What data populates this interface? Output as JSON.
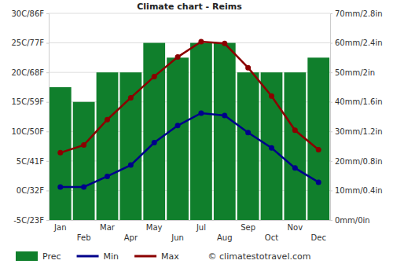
{
  "chart_data": {
    "type": "bar",
    "title": "Climate chart - Reims",
    "categories": [
      "Jan",
      "Feb",
      "Mar",
      "Apr",
      "May",
      "Jun",
      "Jul",
      "Aug",
      "Sep",
      "Oct",
      "Nov",
      "Dec"
    ],
    "series": [
      {
        "name": "Prec",
        "type": "bar",
        "axis": "y2",
        "color": "#107f2c",
        "values": [
          45,
          40,
          50,
          50,
          60,
          55,
          60,
          60,
          50,
          50,
          50,
          55
        ]
      },
      {
        "name": "Min",
        "type": "line",
        "color": "#00008b",
        "marker": "circle",
        "values": [
          0.6,
          0.6,
          2.4,
          4.3,
          8.1,
          11,
          13.1,
          12.7,
          9.8,
          7.2,
          3.8,
          1.4
        ]
      },
      {
        "name": "Max",
        "type": "line",
        "color": "#8b0000",
        "marker": "circle",
        "values": [
          6.4,
          7.7,
          12,
          15.7,
          19.3,
          22.6,
          25.2,
          24.9,
          20.8,
          16,
          10.2,
          6.9
        ]
      }
    ],
    "ylim": [
      -5,
      30
    ],
    "yticks": [
      {
        "value": -5,
        "label": "-5C/23F"
      },
      {
        "value": 0,
        "label": "0C/32F"
      },
      {
        "value": 5,
        "label": "5C/41F"
      },
      {
        "value": 10,
        "label": "10C/50F"
      },
      {
        "value": 15,
        "label": "15C/59F"
      },
      {
        "value": 20,
        "label": "20C/68F"
      },
      {
        "value": 25,
        "label": "25C/77F"
      },
      {
        "value": 30,
        "label": "30C/86F"
      }
    ],
    "y2lim": [
      0,
      70
    ],
    "y2ticks": [
      {
        "value": 0,
        "label": "0mm/0in"
      },
      {
        "value": 10,
        "label": "10mm/0.4in"
      },
      {
        "value": 20,
        "label": "20mm/0.8in"
      },
      {
        "value": 30,
        "label": "30mm/1.2in"
      },
      {
        "value": 40,
        "label": "40mm/1.6in"
      },
      {
        "value": 50,
        "label": "50mm/2in"
      },
      {
        "value": 60,
        "label": "60mm/2.4in"
      },
      {
        "value": 70,
        "label": "70mm/2.8in"
      }
    ],
    "grid": true,
    "legend": "bottom",
    "annotations": [
      "© climatestotravel.com"
    ]
  }
}
